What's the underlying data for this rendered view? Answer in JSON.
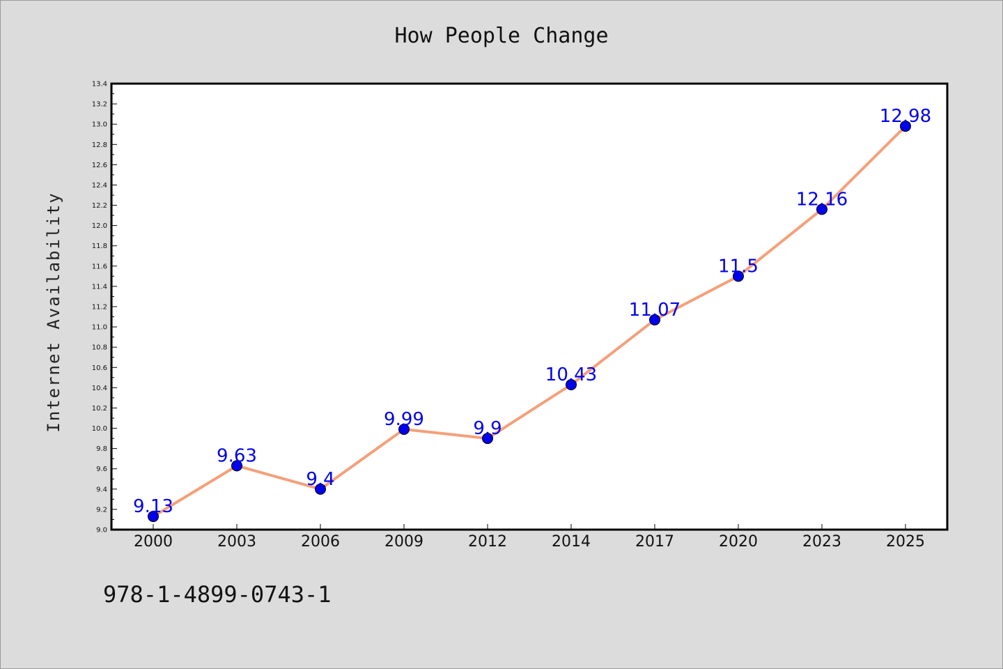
{
  "chart_data": {
    "type": "line",
    "title": "How People Change",
    "ylabel": "Internet Availability",
    "xlabel": "",
    "categories": [
      "2000",
      "2003",
      "2006",
      "2009",
      "2012",
      "2014",
      "2017",
      "2020",
      "2023",
      "2025"
    ],
    "values": [
      9.13,
      9.63,
      9.4,
      9.99,
      9.9,
      10.43,
      11.07,
      11.5,
      12.16,
      12.98
    ],
    "data_labels": [
      "9.13",
      "9.63",
      "9.4",
      "9.99",
      "9.9",
      "10.43",
      "11.07",
      "11.5",
      "12.16",
      "12.98"
    ],
    "ylim": [
      9.0,
      13.4
    ],
    "yticks": [
      "9.0",
      "9.2",
      "9.4",
      "9.6",
      "9.8",
      "10.0",
      "10.2",
      "10.4",
      "10.6",
      "10.8",
      "11.0",
      "11.2",
      "11.4",
      "11.6",
      "11.8",
      "12.0",
      "12.2",
      "12.4",
      "12.6",
      "12.8",
      "13.0",
      "13.2",
      "13.4"
    ],
    "grid": false,
    "line_color": "#f4a07a",
    "marker_color": "#0000ee",
    "label_color": "#0000ee"
  },
  "footer": {
    "isbn": "978-1-4899-0743-1"
  }
}
